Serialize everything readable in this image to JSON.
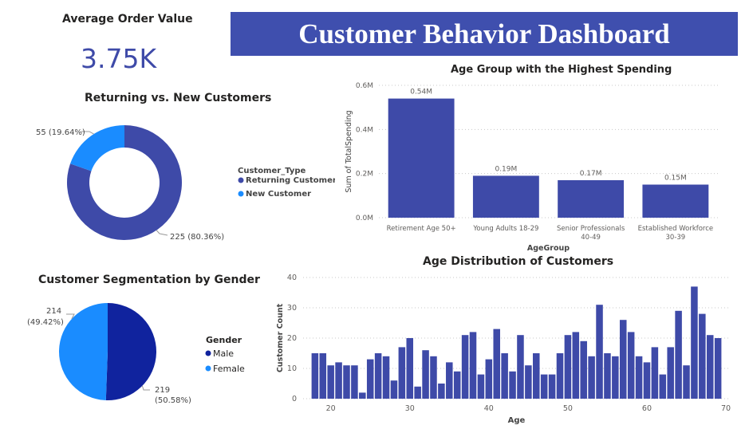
{
  "kpi": {
    "label": "Average Order Value",
    "value": "3.75K"
  },
  "banner": {
    "title": "Customer Behavior Dashboard"
  },
  "colors": {
    "dark_blue": "#3e4aa8",
    "light_blue": "#1a8cff",
    "navy": "#10239e",
    "banner": "#3f4fae"
  },
  "chart_data": [
    {
      "id": "returning_new",
      "type": "pie",
      "donut": true,
      "title": "Returning vs. New Customers",
      "legend_title": "Customer_Type",
      "legend_position": "right",
      "slices": [
        {
          "label": "Returning Customer",
          "value": 225,
          "percent": "80.36%",
          "data_label": "225 (80.36%)",
          "color": "#3e4aa8"
        },
        {
          "label": "New Customer",
          "value": 55,
          "percent": "19.64%",
          "data_label": "55 (19.64%)",
          "color": "#1a8cff"
        }
      ]
    },
    {
      "id": "gender",
      "type": "pie",
      "title": "Customer Segmentation by Gender",
      "legend_title": "Gender",
      "legend_position": "right",
      "slices": [
        {
          "label": "Male",
          "value": 219,
          "percent": "50.58%",
          "data_label_1": "219",
          "data_label_2": "(50.58%)",
          "color": "#10239e"
        },
        {
          "label": "Female",
          "value": 214,
          "percent": "49.42%",
          "data_label_1": "214",
          "data_label_2": "(49.42%)",
          "color": "#1a8cff"
        }
      ]
    },
    {
      "id": "age_spending",
      "type": "bar",
      "title": "Age Group with the Highest Spending",
      "xlabel": "AgeGroup",
      "ylabel": "Sum of TotalSpending",
      "ylim": [
        0,
        600000
      ],
      "yticks": [
        0,
        200000,
        400000,
        600000
      ],
      "ytick_labels": [
        "0.0M",
        "0.2M",
        "0.4M",
        "0.6M"
      ],
      "grid": true,
      "categories": [
        [
          "Retirement Age 50+"
        ],
        [
          "Young Adults 18-29"
        ],
        [
          "Senior Professionals",
          "40-49"
        ],
        [
          "Established Workforce",
          "30-39"
        ]
      ],
      "values": [
        540000,
        190000,
        170000,
        150000
      ],
      "data_labels": [
        "0.54M",
        "0.19M",
        "0.17M",
        "0.15M"
      ],
      "color": "#3e4aa8"
    },
    {
      "id": "age_distribution",
      "type": "bar",
      "title": "Age Distribution of Customers",
      "xlabel": "Age",
      "ylabel": "Customer Count",
      "xlim": [
        16.5,
        70.5
      ],
      "ylim": [
        0,
        40
      ],
      "xticks": [
        20,
        30,
        40,
        50,
        60,
        70
      ],
      "yticks": [
        0,
        10,
        20,
        30,
        40
      ],
      "grid": true,
      "x": [
        18,
        19,
        20,
        21,
        22,
        23,
        24,
        25,
        26,
        27,
        28,
        29,
        30,
        31,
        32,
        33,
        34,
        35,
        36,
        37,
        38,
        39,
        40,
        41,
        42,
        43,
        44,
        45,
        46,
        47,
        48,
        49,
        50,
        51,
        52,
        53,
        54,
        55,
        56,
        57,
        58,
        59,
        60,
        61,
        62,
        63,
        64,
        65,
        66,
        67,
        68,
        69
      ],
      "values": [
        15,
        15,
        11,
        12,
        11,
        11,
        2,
        13,
        15,
        14,
        6,
        17,
        20,
        4,
        16,
        14,
        5,
        12,
        9,
        21,
        22,
        8,
        13,
        23,
        15,
        9,
        21,
        11,
        15,
        8,
        8,
        15,
        21,
        22,
        19,
        14,
        31,
        15,
        14,
        26,
        22,
        14,
        12,
        17,
        8,
        17,
        29,
        11,
        37,
        28,
        21,
        20
      ],
      "color": "#3e4aa8"
    }
  ]
}
